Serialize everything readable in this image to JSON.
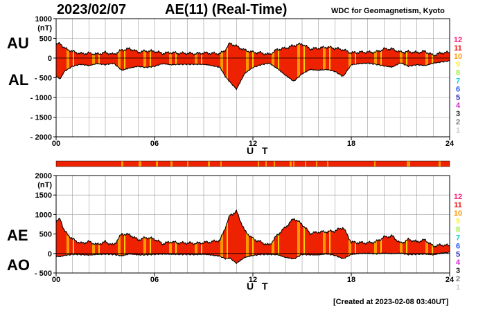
{
  "header": {
    "date": "2023/02/07",
    "index_title": "AE(11) (Real-Time)",
    "source": "WDC for Geomagnetism, Kyoto",
    "created": "[Created at 2023-02-08 03:40UT]"
  },
  "labels": {
    "au": "AU",
    "al": "AL",
    "ae": "AE",
    "ao": "AO",
    "xlabel": "U T"
  },
  "legend": {
    "items": [
      {
        "label": "12",
        "color": "#ff1a75"
      },
      {
        "label": "11",
        "color": "#ee1111"
      },
      {
        "label": "10",
        "color": "#ff9900"
      },
      {
        "label": "9",
        "color": "#ffee33"
      },
      {
        "label": "8",
        "color": "#99ee33"
      },
      {
        "label": "7",
        "color": "#11cccc"
      },
      {
        "label": "6",
        "color": "#2255ff"
      },
      {
        "label": "5",
        "color": "#2222aa"
      },
      {
        "label": "4",
        "color": "#cc22cc"
      },
      {
        "label": "3",
        "color": "#222222"
      },
      {
        "label": "2",
        "color": "#777777"
      },
      {
        "label": "1",
        "color": "#cccccc"
      }
    ]
  },
  "colors": {
    "fill_main": "#ee2200",
    "fill_alt": "#ff9900",
    "fill_alt2": "#ffcc00",
    "grid": "#999999"
  },
  "chart_data": [
    {
      "type": "area",
      "title": "AU / AL",
      "xlabel": "U T",
      "ylabel": "(nT)",
      "xlim": [
        0,
        24
      ],
      "ylim": [
        -2000,
        1000
      ],
      "xticks": [
        "00",
        "06",
        "12",
        "18",
        "24"
      ],
      "yticks": [
        "1000",
        "500",
        "0",
        "- 500",
        "- 1000",
        "- 1500",
        "- 2000"
      ],
      "ytick_values": [
        1000,
        500,
        0,
        -500,
        -1000,
        -1500,
        -2000
      ],
      "grid": true,
      "series": [
        {
          "name": "AU",
          "x": [
            0,
            0.25,
            0.5,
            1,
            1.5,
            2,
            2.5,
            3,
            3.5,
            4,
            4.5,
            5,
            5.5,
            6,
            6.5,
            7,
            7.5,
            8,
            8.5,
            9,
            9.5,
            10,
            10.3,
            10.6,
            11,
            11.5,
            12,
            12.5,
            13,
            13.5,
            14,
            14.5,
            15,
            15.5,
            16,
            16.5,
            17,
            17.5,
            18,
            18.5,
            19,
            19.5,
            20,
            20.5,
            21,
            21.5,
            22,
            22.5,
            23,
            23.5,
            24
          ],
          "values": [
            330,
            380,
            250,
            170,
            110,
            120,
            100,
            140,
            90,
            200,
            240,
            150,
            180,
            170,
            120,
            140,
            120,
            120,
            110,
            130,
            120,
            110,
            200,
            380,
            300,
            200,
            150,
            130,
            90,
            220,
            250,
            320,
            360,
            230,
            250,
            280,
            250,
            210,
            130,
            150,
            150,
            150,
            230,
            230,
            150,
            160,
            140,
            170,
            70,
            130,
            140
          ]
        },
        {
          "name": "AL",
          "x": [
            0,
            0.25,
            0.5,
            1,
            1.5,
            2,
            2.5,
            3,
            3.5,
            4,
            4.5,
            5,
            5.5,
            6,
            6.5,
            7,
            7.5,
            8,
            8.5,
            9,
            9.5,
            10,
            10.3,
            10.6,
            11,
            11.5,
            12,
            12.5,
            13,
            13.5,
            14,
            14.5,
            15,
            15.5,
            16,
            16.5,
            17,
            17.5,
            18,
            18.5,
            19,
            19.5,
            20,
            20.5,
            21,
            21.5,
            22,
            22.5,
            23,
            23.5,
            24
          ],
          "values": [
            -450,
            -520,
            -330,
            -200,
            -150,
            -180,
            -130,
            -160,
            -120,
            -300,
            -240,
            -200,
            -230,
            -200,
            -130,
            -160,
            -150,
            -150,
            -150,
            -150,
            -180,
            -230,
            -450,
            -600,
            -780,
            -380,
            -230,
            -160,
            -120,
            -260,
            -430,
            -580,
            -390,
            -280,
            -300,
            -280,
            -330,
            -460,
            -160,
            -130,
            -120,
            -150,
            -190,
            -220,
            -110,
            -200,
            -160,
            -180,
            -120,
            -90,
            -60
          ]
        }
      ]
    },
    {
      "type": "area",
      "title": "AE / AO",
      "xlabel": "U T",
      "ylabel": "(nT)",
      "xlim": [
        0,
        24
      ],
      "ylim": [
        -500,
        2000
      ],
      "xticks": [
        "00",
        "06",
        "12",
        "18",
        "24"
      ],
      "yticks": [
        "2000",
        "1500",
        "1000",
        "500",
        "0",
        "- 500"
      ],
      "ytick_values": [
        2000,
        1500,
        1000,
        500,
        0,
        -500
      ],
      "grid": true,
      "series": [
        {
          "name": "AE",
          "x": [
            0,
            0.25,
            0.5,
            1,
            1.5,
            2,
            2.5,
            3,
            3.5,
            4,
            4.5,
            5,
            5.5,
            6,
            6.5,
            7,
            7.5,
            8,
            8.5,
            9,
            9.5,
            10,
            10.3,
            10.6,
            11,
            11.5,
            12,
            12.5,
            13,
            13.5,
            14,
            14.5,
            15,
            15.5,
            16,
            16.5,
            17,
            17.5,
            18,
            18.5,
            19,
            19.5,
            20,
            20.5,
            21,
            21.5,
            22,
            22.5,
            23,
            23.5,
            24
          ],
          "values": [
            800,
            900,
            580,
            370,
            260,
            300,
            230,
            300,
            210,
            500,
            480,
            350,
            410,
            370,
            250,
            300,
            270,
            270,
            260,
            280,
            300,
            340,
            650,
            980,
            1080,
            580,
            380,
            290,
            210,
            480,
            680,
            900,
            750,
            510,
            550,
            560,
            580,
            670,
            290,
            280,
            270,
            300,
            420,
            450,
            260,
            360,
            300,
            350,
            190,
            220,
            200
          ]
        },
        {
          "name": "AO",
          "x": [
            0,
            0.25,
            0.5,
            1,
            1.5,
            2,
            2.5,
            3,
            3.5,
            4,
            4.5,
            5,
            5.5,
            6,
            6.5,
            7,
            7.5,
            8,
            8.5,
            9,
            9.5,
            10,
            10.3,
            10.6,
            11,
            11.5,
            12,
            12.5,
            13,
            13.5,
            14,
            14.5,
            15,
            15.5,
            16,
            16.5,
            17,
            17.5,
            18,
            18.5,
            19,
            19.5,
            20,
            20.5,
            21,
            21.5,
            22,
            22.5,
            23,
            23.5,
            24
          ],
          "values": [
            -60,
            -70,
            -40,
            -15,
            -20,
            -30,
            -15,
            -10,
            -15,
            -50,
            0,
            -25,
            -25,
            -15,
            -5,
            -10,
            -15,
            -15,
            -20,
            -10,
            -30,
            -60,
            -125,
            -110,
            -240,
            -90,
            -40,
            -15,
            -15,
            -20,
            -90,
            -130,
            -15,
            -25,
            -25,
            0,
            -40,
            -125,
            -15,
            10,
            15,
            0,
            20,
            5,
            20,
            -20,
            -10,
            -5,
            -25,
            20,
            40
          ]
        }
      ]
    }
  ]
}
